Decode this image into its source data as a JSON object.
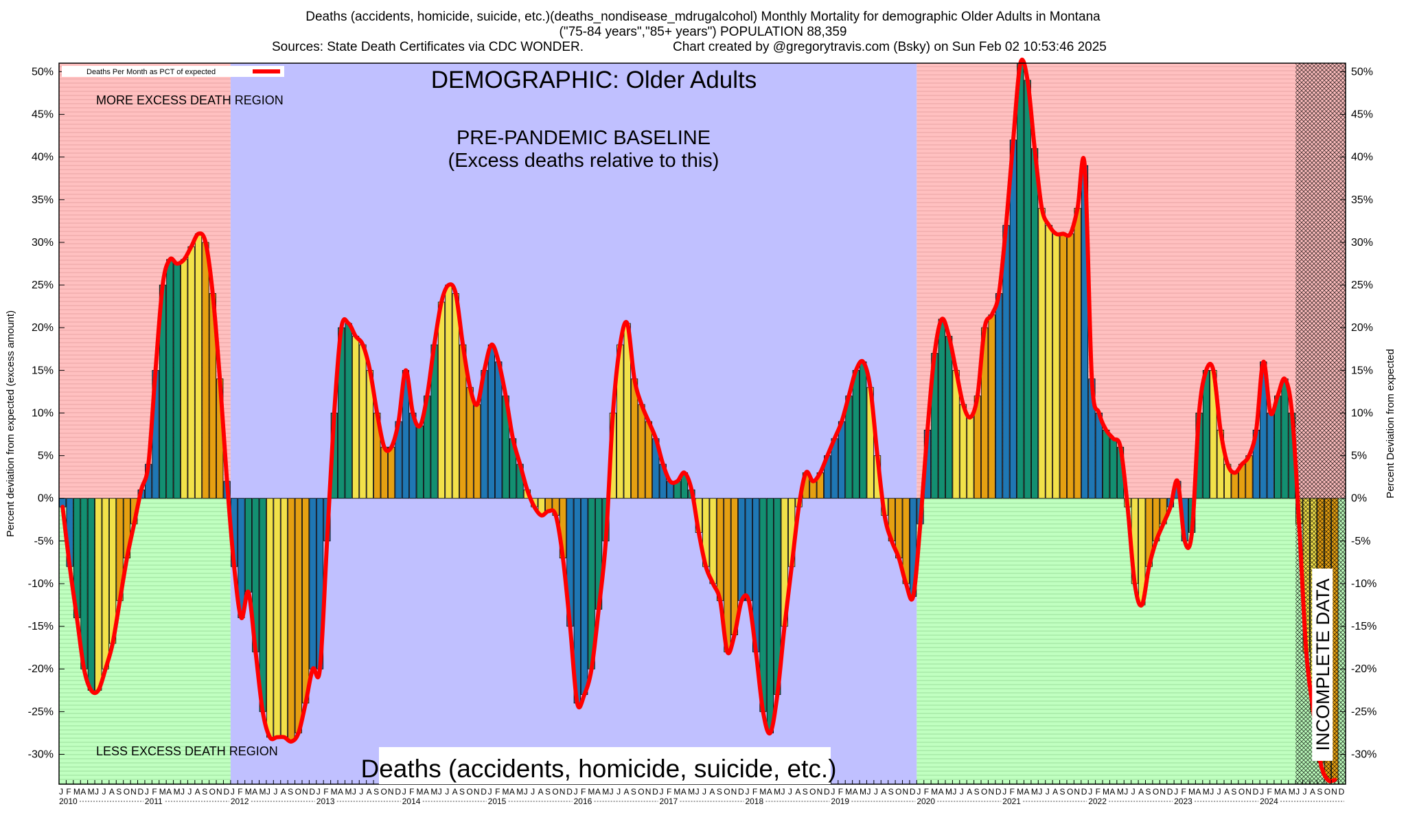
{
  "header": {
    "line1": "Deaths (accidents, homicide, suicide, etc.)(deaths_nondisease_mdrugalcohol) Monthly Mortality for demographic Older Adults in Montana",
    "line2": "(\"75-84 years\",\"85+ years\") POPULATION 88,359",
    "line3a": "Sources: State Death Certificates via CDC WONDER.",
    "line3b": "Chart created by @gregorytravis.com (Bsky) on Sun Feb 02 10:53:46 2025"
  },
  "chart_data": {
    "type": "bar",
    "ylabel_left": "Percent deviation from expected (excess amount)",
    "ylabel_right": "Percent Deviation from expected",
    "ylim": [
      -33.5,
      51.0
    ],
    "yticks": [
      50,
      45,
      40,
      35,
      30,
      25,
      20,
      15,
      10,
      5,
      0,
      -5,
      -10,
      -15,
      -20,
      -25,
      -30
    ],
    "legend": {
      "label": "Deaths Per Month as PCT of expected",
      "color": "#ff0000",
      "position": "top-left"
    },
    "annotations": {
      "demographic": "DEMOGRAPHIC: Older Adults",
      "baseline_1": "PRE-PANDEMIC BASELINE",
      "baseline_2": "(Excess deaths relative to this)",
      "more_excess": "MORE EXCESS DEATH REGION",
      "less_excess": "LESS EXCESS DEATH REGION",
      "bottom_label": "Deaths (accidents, homicide, suicide, etc.)",
      "incomplete": "INCOMPLETE DATA"
    },
    "colors": {
      "excess_region": "#ffc0c0",
      "less_region": "#c0ffc0",
      "baseline_region": "#c0c0ff",
      "line": "#ff0000",
      "bar_winter": "#1f77b4",
      "bar_spring": "#138f71",
      "bar_summer": "#f2e14a",
      "bar_autumn": "#e5a012"
    },
    "x_start": "2010-01",
    "month_letters": [
      "J",
      "F",
      "M",
      "A",
      "M",
      "J",
      "J",
      "A",
      "S",
      "O",
      "N",
      "D"
    ],
    "years": [
      "2010",
      "2011",
      "2012",
      "2013",
      "2014",
      "2015",
      "2016",
      "2017",
      "2018",
      "2019",
      "2020",
      "2021",
      "2022",
      "2023",
      "2024"
    ],
    "baseline_period": [
      "2012-01",
      "2020-01"
    ],
    "incomplete_from": "2024-06",
    "values": [
      -1,
      -8,
      -14,
      -20,
      -22.5,
      -22.5,
      -20,
      -17,
      -12,
      -7,
      -3,
      1,
      4,
      15,
      25,
      28,
      27.5,
      28,
      29.5,
      31,
      30,
      24,
      14,
      2,
      -8,
      -14,
      -11,
      -18,
      -25,
      -28,
      -28,
      -28,
      -28.5,
      -27.5,
      -24,
      -20,
      -20,
      -5,
      10,
      20,
      20.5,
      19,
      18,
      15,
      10,
      6,
      6,
      9,
      15,
      10,
      8.5,
      12,
      18,
      23,
      25,
      24,
      18,
      13,
      11,
      15,
      18,
      16,
      12,
      7,
      4,
      1,
      -1,
      -2,
      -1.5,
      -2,
      -7,
      -15,
      -24,
      -23,
      -20,
      -13,
      -5,
      10,
      18,
      20.5,
      14,
      11,
      9,
      7,
      4,
      2,
      2,
      3,
      1,
      -4,
      -8,
      -10,
      -12,
      -18,
      -16,
      -12,
      -12,
      -18,
      -25,
      -27.5,
      -23,
      -15,
      -8,
      -1,
      3,
      2,
      3,
      5,
      7,
      9,
      12,
      15,
      16,
      13,
      5,
      -2,
      -5,
      -7,
      -10,
      -11.5,
      -3,
      8,
      17,
      21,
      19,
      15,
      11,
      9.5,
      12,
      20,
      21.5,
      24,
      32,
      42,
      51,
      49,
      41,
      34,
      32,
      31,
      31,
      31,
      34,
      39,
      14,
      10,
      8,
      7,
      6,
      -1,
      -10,
      -12.5,
      -8,
      -5,
      -3,
      -1,
      2,
      -5,
      -4,
      10,
      15,
      15,
      8,
      4,
      3,
      4,
      5,
      8,
      16,
      10,
      12,
      14,
      10,
      -3,
      -18,
      -25,
      -31,
      -33,
      -33
    ]
  }
}
